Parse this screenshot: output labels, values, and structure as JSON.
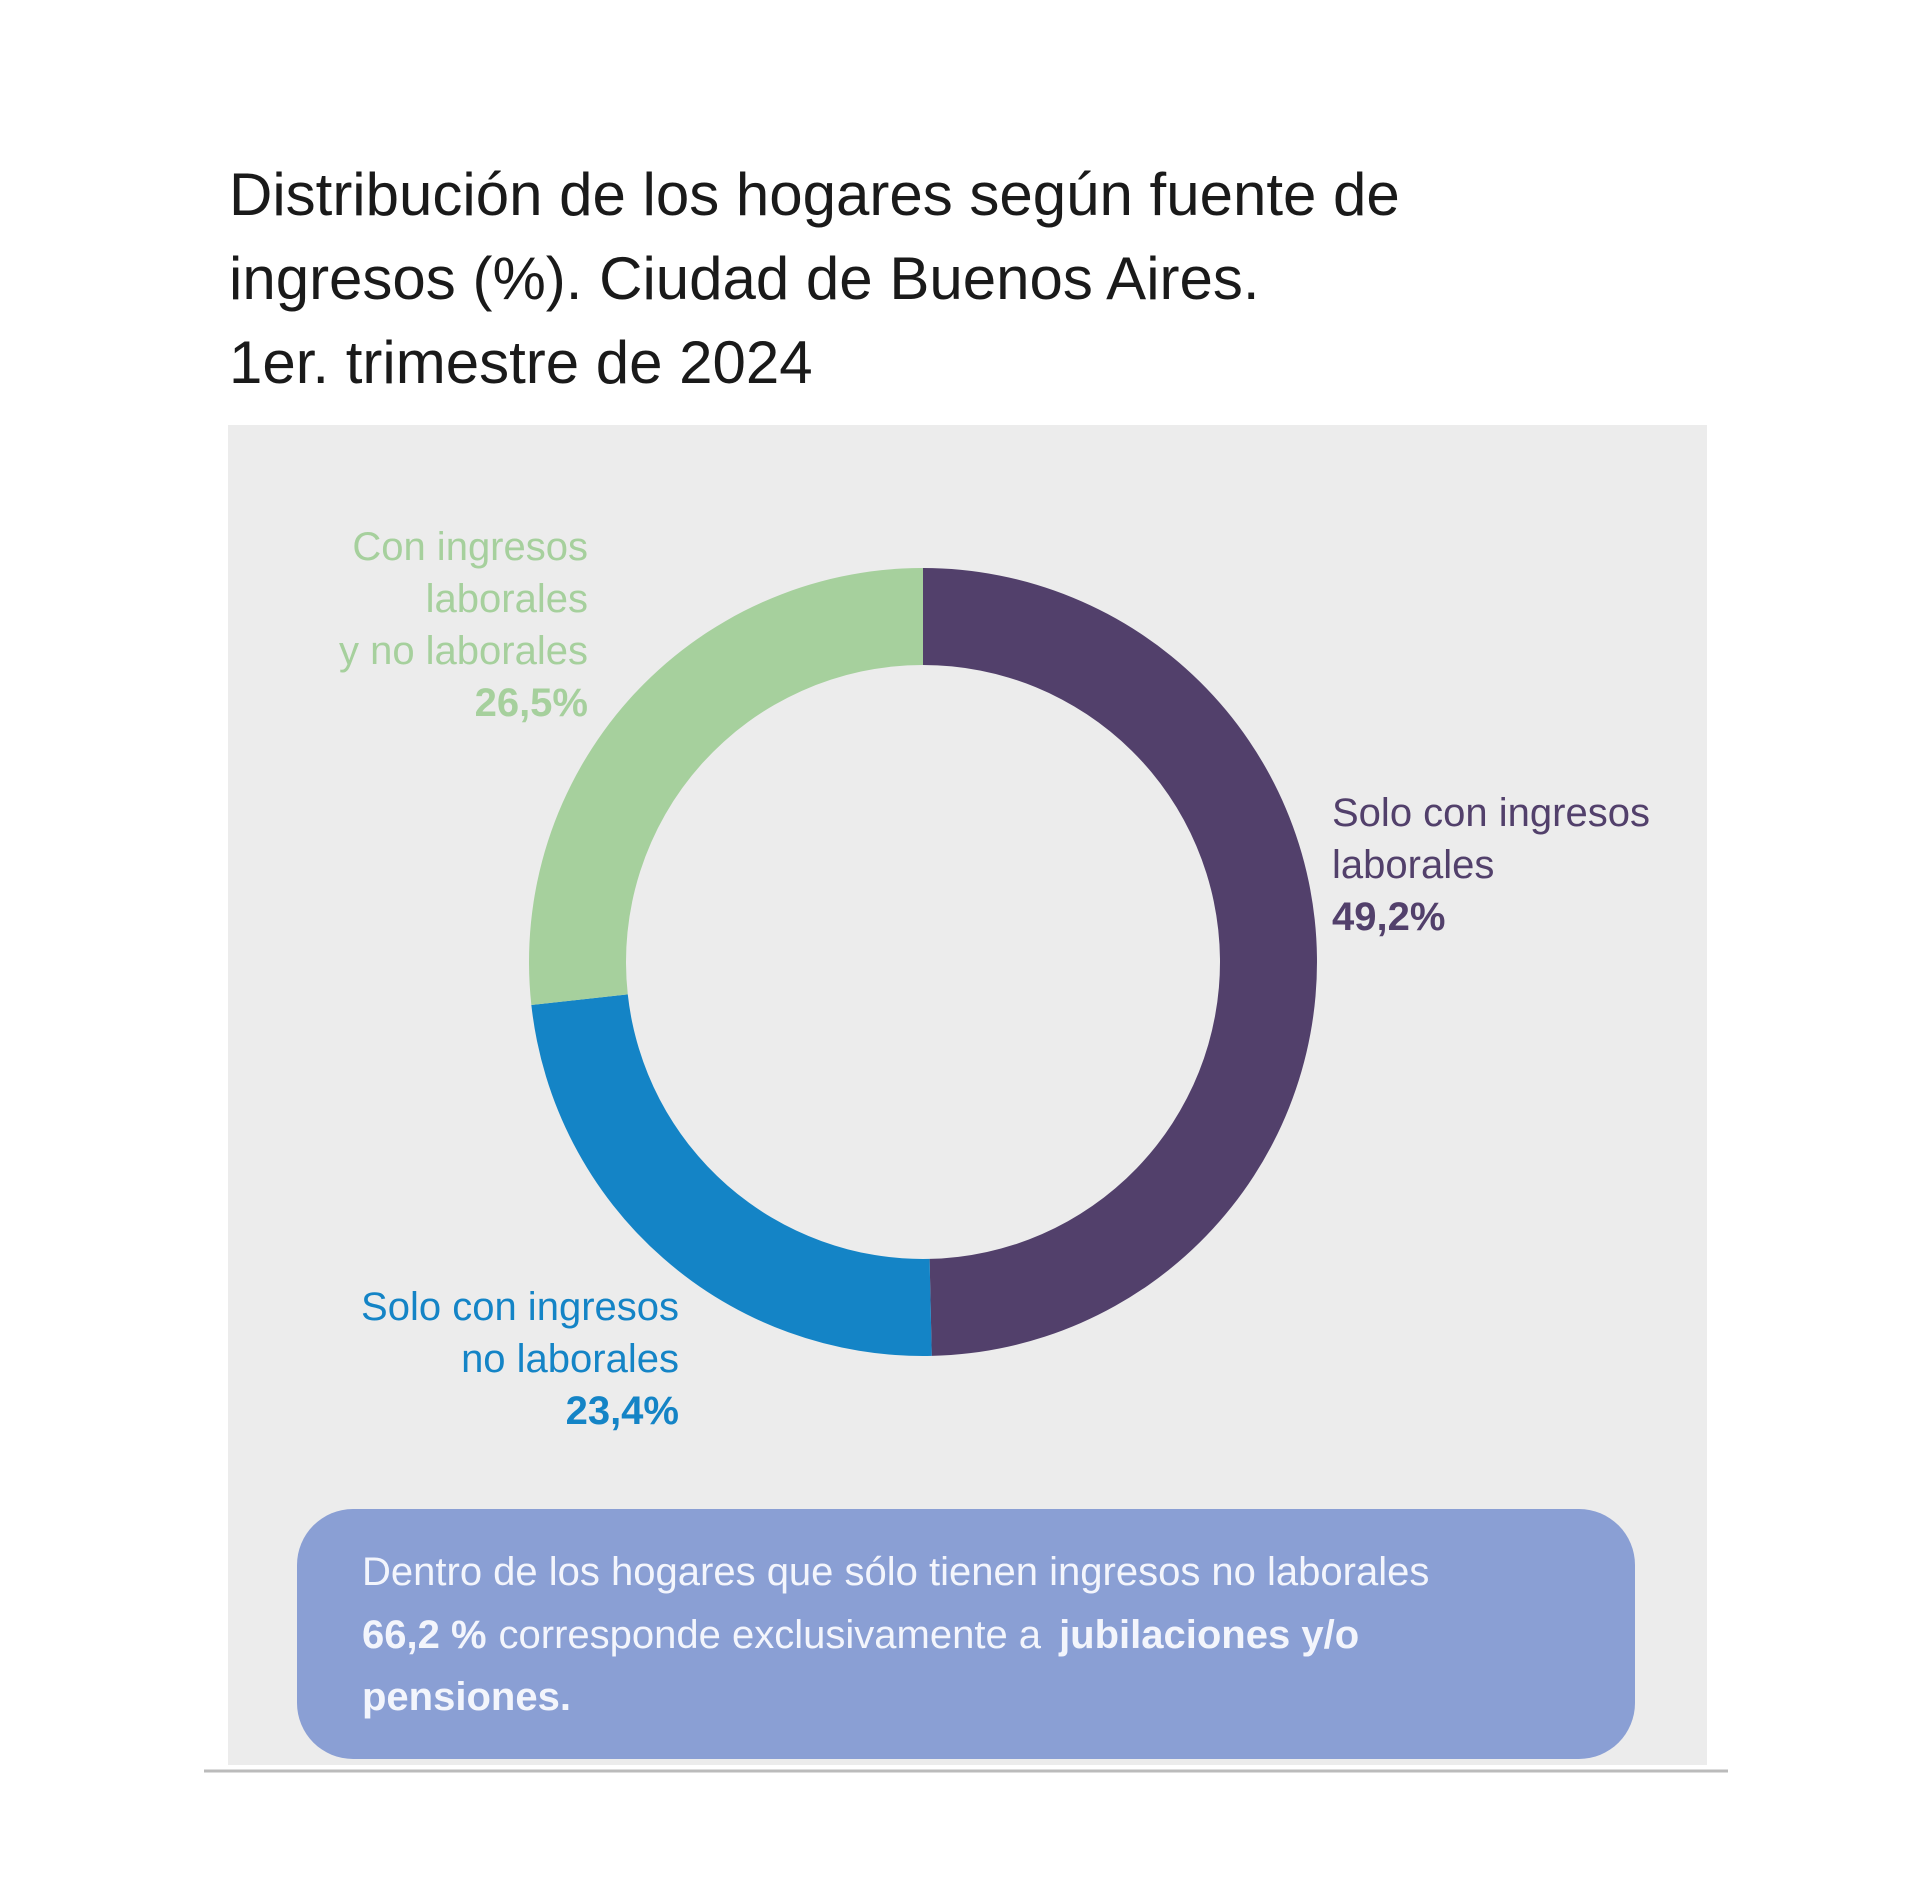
{
  "chart_data": {
    "type": "donut",
    "title": [
      "Distribución de los hogares según fuente de",
      "ingresos (%). Ciudad de Buenos Aires.",
      "1er. trimestre de 2024"
    ],
    "categories": [
      [
        "Solo con ingresos",
        "laborales"
      ],
      [
        "Solo con ingresos",
        "no laborales"
      ],
      [
        "Con ingresos",
        "laborales",
        "y no laborales"
      ]
    ],
    "values": [
      49.2,
      23.4,
      26.5
    ],
    "value_labels": [
      "49,2%",
      "23,4%",
      "26,5%"
    ],
    "colors": [
      "#52406b",
      "#1484c6",
      "#a6d09d"
    ],
    "note": {
      "text": "Dentro de los hogares que sólo tienen ingresos no laborales",
      "value_label": "66,2 %",
      "text2": "corresponde exclusivamente a",
      "emphasis_lines": [
        "jubilaciones y/o",
        "pensiones."
      ]
    }
  }
}
